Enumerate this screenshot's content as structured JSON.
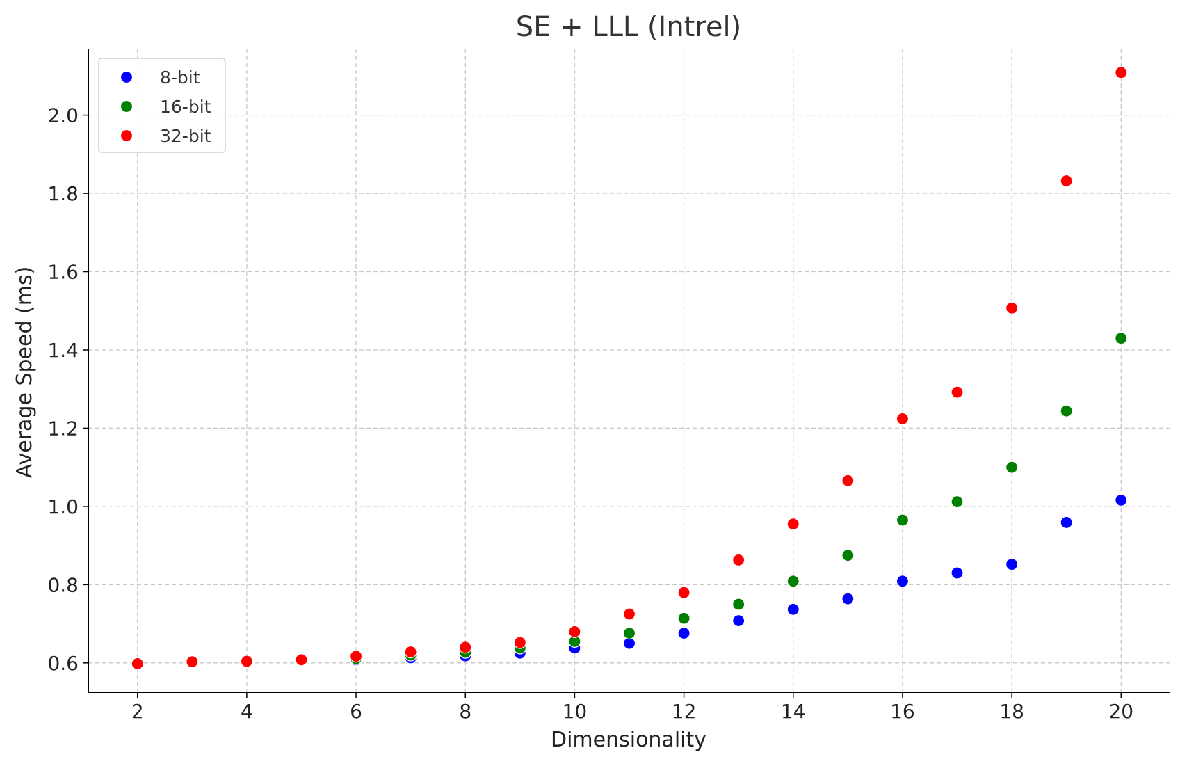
{
  "chart_data": {
    "type": "scatter",
    "title": "SE + LLL (Intrel)",
    "xlabel": "Dimensionality",
    "ylabel": "Average Speed (ms)",
    "xlim": [
      1.1,
      20.9
    ],
    "ylim": [
      0.525,
      2.17
    ],
    "xticks": [
      2,
      4,
      6,
      8,
      10,
      12,
      14,
      16,
      18,
      20
    ],
    "yticks": [
      0.6,
      0.8,
      1.0,
      1.2,
      1.4,
      1.6,
      1.8,
      2.0
    ],
    "xtick_labels": [
      "2",
      "4",
      "6",
      "8",
      "10",
      "12",
      "14",
      "16",
      "18",
      "20"
    ],
    "ytick_labels": [
      "0.6",
      "0.8",
      "1.0",
      "1.2",
      "1.4",
      "1.6",
      "1.8",
      "2.0"
    ],
    "grid": true,
    "legend_position": "top-left",
    "x": [
      2,
      3,
      4,
      5,
      6,
      7,
      8,
      9,
      10,
      11,
      12,
      13,
      14,
      15,
      16,
      17,
      18,
      19,
      20
    ],
    "series": [
      {
        "name": "8-bit",
        "color": "#0000ff",
        "values": [
          0.6,
          0.601,
          0.602,
          0.605,
          0.608,
          0.613,
          0.618,
          0.625,
          0.638,
          0.65,
          0.676,
          0.708,
          0.737,
          0.764,
          0.809,
          0.83,
          0.852,
          0.959,
          1.016
        ]
      },
      {
        "name": "16-bit",
        "color": "#008000",
        "values": [
          0.6,
          0.602,
          0.603,
          0.607,
          0.611,
          0.62,
          0.627,
          0.638,
          0.655,
          0.676,
          0.714,
          0.75,
          0.809,
          0.875,
          0.965,
          1.012,
          1.1,
          1.244,
          1.43
        ]
      },
      {
        "name": "32-bit",
        "color": "#ff0000",
        "values": [
          0.598,
          0.603,
          0.604,
          0.608,
          0.617,
          0.628,
          0.64,
          0.652,
          0.68,
          0.725,
          0.78,
          0.863,
          0.955,
          1.066,
          1.224,
          1.292,
          1.507,
          1.832,
          2.109
        ]
      }
    ]
  }
}
